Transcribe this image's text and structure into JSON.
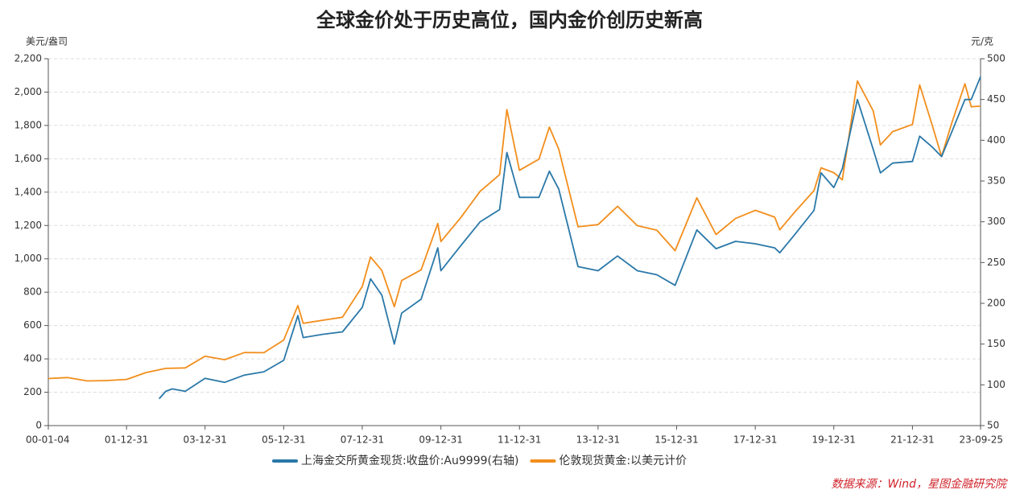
{
  "chart_data": {
    "type": "line",
    "title": "全球金价处于历史高位，国内金价创历史新高",
    "y_label": "美元/盎司",
    "y2_label": "元/克",
    "source": "数据来源：Wind，星图金融研究院",
    "grid": true,
    "legend": "bottom",
    "xticks": [
      "00-01-04",
      "01-12-31",
      "03-12-31",
      "05-12-31",
      "07-12-31",
      "09-12-31",
      "11-12-31",
      "13-12-31",
      "15-12-31",
      "17-12-31",
      "19-12-31",
      "21-12-31",
      "23-09-25"
    ],
    "ylim": [
      0,
      2200
    ],
    "yticks": [
      0,
      200,
      400,
      600,
      800,
      {
        "value": 1000,
        "label": "1,000"
      },
      {
        "value": 1200,
        "label": "1,200"
      },
      {
        "value": 1400,
        "label": "1,400"
      },
      {
        "value": 1600,
        "label": "1,600"
      },
      {
        "value": 1800,
        "label": "1,800"
      },
      {
        "value": 2000,
        "label": "2,000"
      },
      {
        "value": 2200,
        "label": "2,200"
      }
    ],
    "y2lim": [
      50,
      500
    ],
    "y2ticks": [
      50,
      100,
      150,
      200,
      250,
      300,
      350,
      400,
      450,
      500
    ],
    "series": [
      {
        "name": "上海金交所黄金现货:收盘价:Au9999(右轴)",
        "color": "#2a78a8",
        "axis": "y2",
        "x": [
          "02-10-30",
          "02-12-31",
          "03-03-01",
          "03-06-30",
          "03-12-31",
          "04-06-30",
          "04-12-31",
          "05-06-30",
          "05-12-31",
          "06-05-12",
          "06-06-30",
          "06-12-31",
          "07-06-30",
          "07-12-31",
          "08-03-17",
          "08-06-30",
          "08-10-24",
          "08-12-31",
          "09-06-30",
          "09-12-02",
          "09-12-31",
          "10-06-30",
          "10-12-31",
          "11-06-30",
          "11-09-05",
          "11-12-31",
          "12-06-30",
          "12-10-04",
          "12-12-31",
          "13-06-28",
          "13-12-31",
          "14-06-30",
          "14-12-31",
          "15-06-30",
          "15-12-17",
          "16-07-06",
          "16-12-31",
          "17-06-30",
          "17-12-31",
          "18-06-30",
          "18-08-16",
          "18-12-31",
          "19-06-30",
          "19-09-04",
          "19-12-31",
          "20-03-19",
          "20-08-06",
          "20-12-31",
          "21-03-08",
          "21-06-30",
          "21-12-31",
          "22-03-08",
          "22-06-30",
          "22-09-28",
          "22-12-31",
          "23-05-03",
          "23-06-30",
          "23-09-25"
        ],
        "values": [
          83,
          92,
          95,
          92,
          108,
          103,
          112,
          116,
          130,
          185,
          158,
          162,
          165,
          195,
          230,
          210,
          150,
          188,
          205,
          268,
          240,
          270,
          300,
          315,
          385,
          330,
          330,
          362,
          340,
          245,
          240,
          258,
          240,
          235,
          222,
          290,
          267,
          276,
          273,
          268,
          262,
          284,
          314,
          360,
          342,
          365,
          450,
          389,
          360,
          372,
          374,
          405,
          392,
          380,
          410,
          450,
          450,
          478
        ]
      },
      {
        "name": "伦敦现货黄金:以美元计价",
        "color": "#f28e1c",
        "axis": "y",
        "x": [
          "00-01-04",
          "00-06-30",
          "01-01-02",
          "01-06-30",
          "01-12-31",
          "02-06-30",
          "02-12-31",
          "03-06-30",
          "03-12-31",
          "04-06-30",
          "04-12-31",
          "05-06-30",
          "05-12-31",
          "06-05-12",
          "06-06-30",
          "06-12-31",
          "07-06-30",
          "07-12-31",
          "08-03-17",
          "08-06-30",
          "08-10-24",
          "08-12-31",
          "09-06-30",
          "09-12-02",
          "09-12-31",
          "10-06-30",
          "10-12-31",
          "11-06-30",
          "11-09-05",
          "11-12-31",
          "12-06-30",
          "12-10-04",
          "12-12-31",
          "13-06-28",
          "13-12-31",
          "14-06-30",
          "14-12-31",
          "15-06-30",
          "15-12-17",
          "16-07-06",
          "16-12-31",
          "17-06-30",
          "17-12-31",
          "18-06-30",
          "18-08-16",
          "18-12-31",
          "19-06-30",
          "19-09-04",
          "19-12-31",
          "20-03-19",
          "20-08-06",
          "20-12-31",
          "21-03-08",
          "21-06-30",
          "21-12-31",
          "22-03-08",
          "22-06-30",
          "22-09-28",
          "22-12-31",
          "23-05-03",
          "23-06-30",
          "23-09-25"
        ],
        "values": [
          282,
          288,
          268,
          270,
          277,
          318,
          343,
          346,
          416,
          395,
          438,
          437,
          513,
          720,
          613,
          632,
          650,
          834,
          1011,
          930,
          713,
          870,
          934,
          1212,
          1104,
          1244,
          1405,
          1505,
          1895,
          1531,
          1598,
          1790,
          1657,
          1192,
          1205,
          1315,
          1199,
          1172,
          1049,
          1366,
          1146,
          1242,
          1291,
          1250,
          1174,
          1279,
          1409,
          1546,
          1517,
          1474,
          2067,
          1888,
          1683,
          1763,
          1806,
          2043,
          1807,
          1614,
          1814,
          2050,
          1912,
          1916
        ]
      }
    ]
  }
}
